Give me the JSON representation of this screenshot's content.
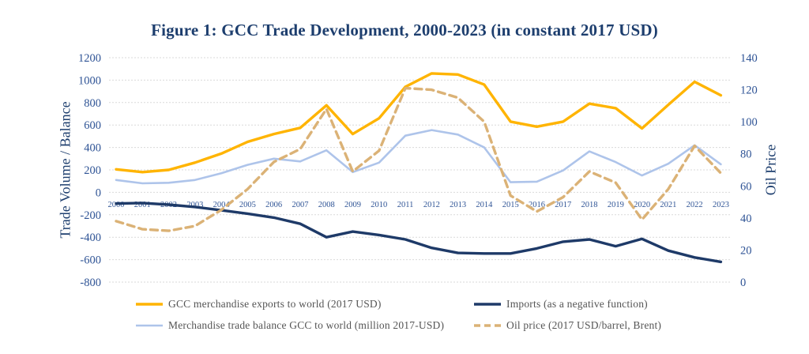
{
  "title": "Figure 1: GCC Trade Development, 2000-2023 (in constant 2017 USD)",
  "left_axis": {
    "label": "Trade Volume / Balance",
    "ticks": [
      1200,
      1000,
      800,
      600,
      400,
      200,
      0,
      -200,
      -400,
      -600,
      -800
    ],
    "min": -800,
    "max": 1200
  },
  "right_axis": {
    "label": "Oil Price",
    "ticks": [
      140,
      120,
      100,
      80,
      60,
      40,
      20,
      0
    ],
    "min": 0,
    "max": 140
  },
  "chart_data": {
    "type": "line",
    "x": [
      "2000",
      "2001",
      "2002",
      "2003",
      "2004",
      "2005",
      "2006",
      "2007",
      "2008",
      "2009",
      "2010",
      "2011",
      "2012",
      "2013",
      "2014",
      "2015",
      "2016",
      "2017",
      "2018",
      "2019",
      "2020",
      "2021",
      "2022",
      "2023"
    ],
    "xlabel": "",
    "ylabel_left": "Trade Volume / Balance",
    "ylabel_right": "Oil Price",
    "ylim_left": [
      -800,
      1200
    ],
    "ylim_right": [
      0,
      140
    ],
    "grid": true,
    "legend_position": "bottom",
    "series": [
      {
        "key": "exports",
        "name": "GCC merchandise exports to world (2017 USD)",
        "axis": "left",
        "style": "solid",
        "color": "#ffb400",
        "values": [
          205,
          180,
          200,
          265,
          345,
          450,
          520,
          575,
          775,
          520,
          660,
          940,
          1060,
          1050,
          960,
          630,
          585,
          630,
          790,
          750,
          570,
          780,
          985,
          865
        ]
      },
      {
        "key": "trade-balance",
        "name": "Merchandise trade balance GCC to world (million 2017-USD)",
        "axis": "left",
        "style": "solid",
        "color": "#aec4ea",
        "values": [
          110,
          80,
          85,
          110,
          170,
          245,
          300,
          275,
          375,
          180,
          265,
          505,
          555,
          515,
          400,
          90,
          95,
          195,
          365,
          270,
          150,
          255,
          420,
          250
        ]
      },
      {
        "key": "imports",
        "name": "Imports (as a negative function)",
        "axis": "left",
        "style": "solid",
        "color": "#1e3a68",
        "values": [
          -100,
          -95,
          -110,
          -130,
          -160,
          -190,
          -225,
          -280,
          -400,
          -350,
          -380,
          -420,
          -495,
          -540,
          -545,
          -545,
          -500,
          -440,
          -420,
          -480,
          -415,
          -520,
          -580,
          -620
        ]
      },
      {
        "key": "oil-price",
        "name": "Oil price (2017 USD/barrel, Brent)",
        "axis": "right",
        "style": "dashed",
        "color": "#dbb276",
        "values": [
          38,
          33,
          32,
          35,
          45,
          58,
          75,
          83,
          108,
          69,
          82,
          121,
          120,
          115,
          100,
          54,
          44,
          53,
          69,
          62,
          39,
          58,
          85,
          68
        ]
      }
    ]
  },
  "colors": {
    "title_text": "#1d3e6e",
    "tick_text": "#2e5395",
    "legend_text": "#545454",
    "gridline": "#d9d9d9",
    "background": "#ffffff"
  }
}
